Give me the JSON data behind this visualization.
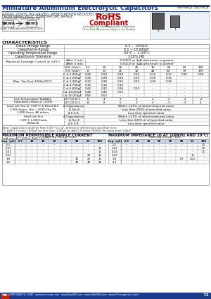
{
  "title": "Miniature Aluminum Electrolytic Capacitors",
  "series": "NRWS Series",
  "subtitle1": "RADIAL LEADS, POLARIZED, NEW FURTHER REDUCED CASE SIZING,",
  "subtitle2": "FROM NRWA WIDE TEMPERATURE RANGE",
  "ext_temp": "EXTENDED TEMPERATURE",
  "nrwa_label": "NRWA",
  "nrws_label": "NRWS",
  "nrwa_sub": "ORIGINAL STANDARD",
  "nrws_sub": "IMPROVED TYPES",
  "rohs_sub": "Includes all homogeneous materials",
  "rohs_note": "*See Pink Aluminum Option for Details",
  "char_title": "CHARACTERISTICS",
  "char_rows": [
    [
      "Rated Voltage Range",
      "6.3 ~ 100VDC"
    ],
    [
      "Capacitance Range",
      "0.1 ~ 15,000μF"
    ],
    [
      "Operating Temperature Range",
      "-55°C ~ +105°C"
    ],
    [
      "Capacitance Tolerance",
      "±20% (M)"
    ]
  ],
  "leakage_label": "Maximum Leakage Current @ ±20°c",
  "leakage_after1": "After 1 min.",
  "leakage_val1": "0.03CV or 4μA whichever is greater",
  "leakage_after2": "After 2 min.",
  "leakage_val2": "0.01CV or 3μA whichever is greater",
  "tan_label": "Max. Tan δ at 120Hz/20°C",
  "tan_headers": [
    "W.V. (Vdc)",
    "6.3",
    "10",
    "16",
    "25",
    "35",
    "50",
    "63",
    "100"
  ],
  "tan_sv": [
    "S.V. (Vdc)",
    "8",
    "13",
    "21",
    "32",
    "44",
    "63",
    "79",
    "125"
  ],
  "tan_rows": [
    [
      "C ≤ 1,000μF",
      "0.28",
      "0.24",
      "0.20",
      "0.16",
      "0.14",
      "0.12",
      "0.10",
      "0.08"
    ],
    [
      "C ≤ 2,200μF",
      "0.36",
      "0.28",
      "0.24",
      "0.20",
      "0.18",
      "0.16",
      "-",
      "-"
    ],
    [
      "C ≤ 3,300μF",
      "0.32",
      "0.28",
      "0.24",
      "0.20",
      "0.18",
      "0.16",
      "-",
      "-"
    ],
    [
      "C ≤ 4,700μF",
      "0.14",
      "0.14",
      "0.14",
      "-",
      "-",
      "-",
      "-",
      "-"
    ],
    [
      "C ≤ 6,800μF",
      "0.40",
      "0.32",
      "0.28",
      "0.24",
      "-",
      "-",
      "-",
      "-"
    ],
    [
      "C ≤ 10,000μF",
      "0.48",
      "0.44",
      "0.50",
      "-",
      "-",
      "-",
      "-",
      "-"
    ],
    [
      "C ≤ 15,000μF",
      "0.56",
      "0.52",
      "-",
      "-",
      "-",
      "-",
      "-",
      "-"
    ]
  ],
  "imp_label": "Low Temperature Stability\nImpedance Ratio @ 120Hz",
  "imp_rows": [
    [
      "2.0°C/2.0°C",
      "6",
      "4",
      "3",
      "2",
      "2",
      "2",
      "2",
      "2"
    ],
    [
      "2.0°C/2.5°C",
      "12",
      "8",
      "5",
      "3",
      "4",
      "3",
      "4",
      "4"
    ]
  ],
  "load_label": "Load Life Test at +105°C & Rated W.V\n2,000 Hours: 1Hz ~ 100% Dty 5%\n1,000 Hours: All others",
  "load_rows": [
    [
      "Δ Capacitance",
      "Within ±20% of initial measured value"
    ],
    [
      "Δ Tan δ",
      "Less than 200% of specified value"
    ],
    [
      "Δ E.S.R.",
      "Less than specified value"
    ]
  ],
  "shelf_label": "Shelf Life Test\n+105°C 1,000 hours\nUnbiased",
  "shelf_rows": [
    [
      "Δ Capacitance",
      "Within ±25% of initial measured value"
    ],
    [
      "Δ Tan δ",
      "Less than 200% of all specified value"
    ],
    [
      "Δ E.S.R.",
      "Less than specified value"
    ]
  ],
  "note1": "Note: Capacitance shall be from 0.85~0.1 μF, otherwise dimensions specified here.",
  "note2": "*1. Add 0.5 every 1000μF for less than 1000μF or Add 0.5 every 5000μF for more than 100μF",
  "ripple_title": "MAXIMUM PERMISSIBLE RIPPLE CURRENT",
  "ripple_sub": "(mA rms AT 100KHz AND 105°C)",
  "ripple_headers": [
    "Cap. (μF)",
    "6.3",
    "10",
    "16",
    "25",
    "35",
    "50",
    "63",
    "100"
  ],
  "ripple_rows": [
    [
      "0.1",
      "-",
      "-",
      "-",
      "-",
      "-",
      "-",
      "-",
      "-"
    ],
    [
      "0.22",
      "-",
      "-",
      "-",
      "-",
      "-",
      "-",
      "-",
      "15"
    ],
    [
      "0.33",
      "-",
      "-",
      "-",
      "-",
      "-",
      "-",
      "-",
      "15"
    ],
    [
      "0.47",
      "-",
      "-",
      "-",
      "-",
      "-",
      "-",
      "20",
      "15"
    ],
    [
      "1.0",
      "-",
      "-",
      "-",
      "-",
      "-",
      "30",
      "25",
      "20"
    ],
    [
      "2.2",
      "-",
      "-",
      "-",
      "-",
      "-",
      "40",
      "40",
      "44"
    ]
  ],
  "imp2_title": "MAXIMUM IMPEDANCE (Ω AT 100KHz AND 20°C)",
  "imp2_headers": [
    "Cap. (μF)",
    "6.3",
    "10",
    "16",
    "25",
    "35",
    "50",
    "63",
    "100"
  ],
  "imp2_rows": [
    [
      "0.1",
      "-",
      "-",
      "-",
      "-",
      "-",
      "-",
      "-",
      "20"
    ],
    [
      "0.22",
      "-",
      "-",
      "-",
      "-",
      "-",
      "-",
      "-",
      "20"
    ],
    [
      "0.33",
      "-",
      "-",
      "-",
      "-",
      "-",
      "-",
      "-",
      "15"
    ],
    [
      "0.47",
      "-",
      "-",
      "-",
      "-",
      "-",
      "-",
      "15",
      "-"
    ],
    [
      "1.0",
      "-",
      "-",
      "-",
      "-",
      "-",
      "7.0",
      "10.5",
      "-"
    ],
    [
      "2.2",
      "-",
      "-",
      "-",
      "-",
      "-",
      "-",
      "-",
      "-"
    ]
  ],
  "footer": "NIC COMPONENTS CORP.  www.niccomp.com  www.BuySM.com  www.iSellSM.com  www.HFmagnetics.com",
  "page_num": "72",
  "blue_dark": "#1a3a8c",
  "table_line": "#888888",
  "table_bg_header": "#c8d8ec",
  "bg_color": "#ffffff"
}
